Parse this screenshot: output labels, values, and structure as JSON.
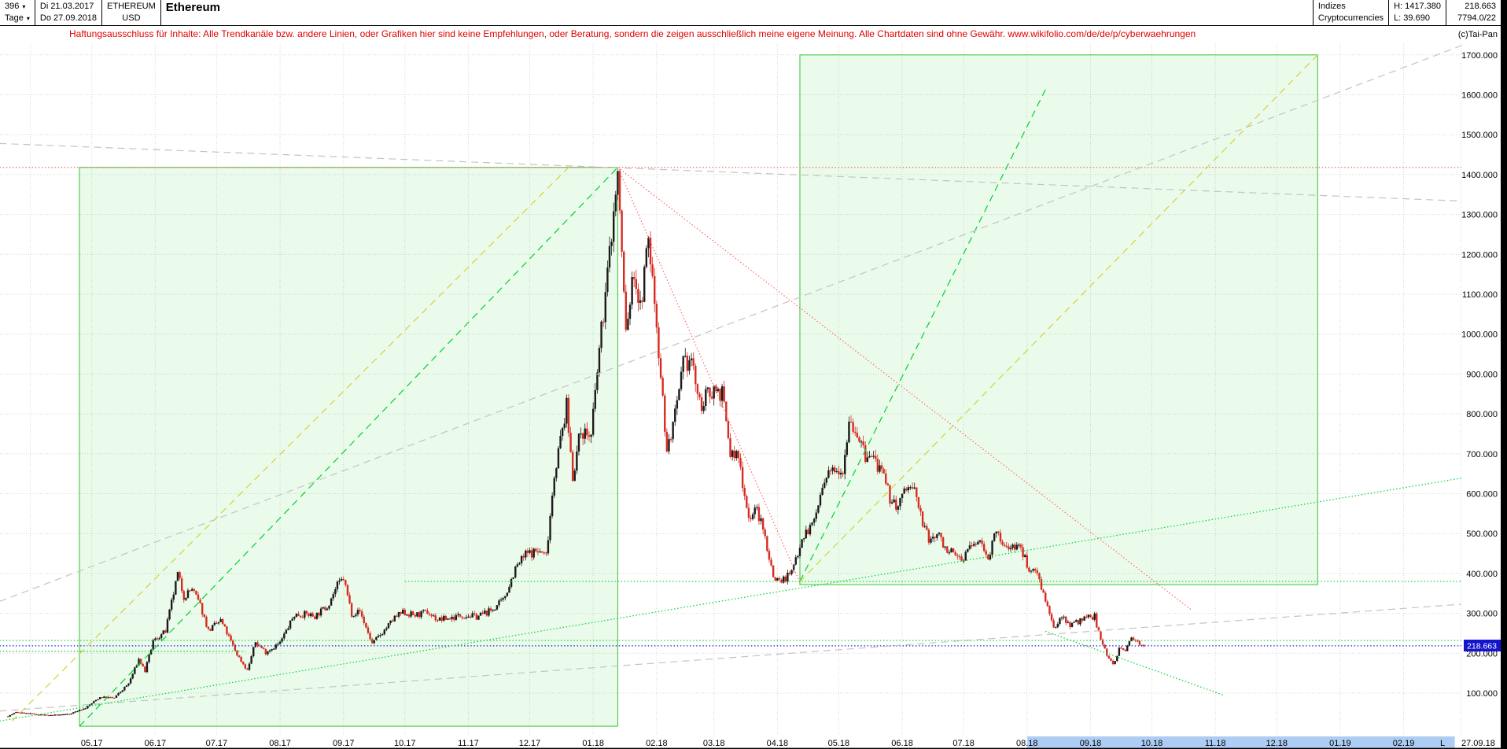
{
  "header": {
    "period_count": "396",
    "period_unit": "Tage",
    "date_from": "Di 21.03.2017",
    "date_to": "Do 27.09.2018",
    "symbol": "ETHEREUM",
    "currency": "USD",
    "title": "Ethereum",
    "group1": "Indizes",
    "group2": "Cryptocurrencies",
    "high_label": "H: 1417.380",
    "low_label": "L: 39.690",
    "last_value": "218.663",
    "secondary_value": "7794.0/22",
    "copyright": "(c)Tai-Pan"
  },
  "disclaimer": "Haftungsausschluss für Inhalte: Alle Trendkanäle bzw. andere Linien, oder Grafiken hier sind keine Empfehlungen, oder Beratung, sondern die zeigen ausschließlich meine eigene Meinung. Alle Chartdaten sind ohne Gewähr. www.wikifolio.com/de/de/p/cyberwaehrungen",
  "colors": {
    "candle_up": "#1a1a1a",
    "candle_down": "#d62b20",
    "box_fill": "rgba(60,220,60,0.10)",
    "box_edge": "#35c335",
    "green": "#00d22e",
    "olive": "#d2d23c",
    "red": "#ff6a6a",
    "gray": "#c3c3c3",
    "blue": "#2020dd",
    "grid": "#d6d6d6",
    "band": "#aecdf4",
    "badge_bg": "#1414cc",
    "badge_text": "#ffffff"
  },
  "chart_data": {
    "type": "candlestick-ohlc",
    "title": "Ethereum",
    "instrument": "ETHEREUM/USD",
    "period": "Tage",
    "grid": true,
    "x_start": "2017-03-21",
    "x_end_label": "27.09.18",
    "last_price": 218.663,
    "high": 1417.38,
    "low": 39.69,
    "ylim": [
      0,
      1755
    ],
    "y_tick_suffix": ".000",
    "y_ticks": [
      1700,
      1600,
      1500,
      1400,
      1300,
      1200,
      1100,
      1000,
      900,
      800,
      700,
      600,
      500,
      400,
      300,
      200,
      100
    ],
    "x_ticks": [
      {
        "label": "05.17",
        "date": "2017-05-01"
      },
      {
        "label": "06.17",
        "date": "2017-06-01"
      },
      {
        "label": "07.17",
        "date": "2017-07-01"
      },
      {
        "label": "08.17",
        "date": "2017-08-01"
      },
      {
        "label": "09.17",
        "date": "2017-09-01"
      },
      {
        "label": "10.17",
        "date": "2017-10-01"
      },
      {
        "label": "11.17",
        "date": "2017-11-01"
      },
      {
        "label": "12.17",
        "date": "2017-12-01"
      },
      {
        "label": "01.18",
        "date": "2018-01-01"
      },
      {
        "label": "02.18",
        "date": "2018-02-01"
      },
      {
        "label": "03.18",
        "date": "2018-03-01"
      },
      {
        "label": "04.18",
        "date": "2018-04-01"
      },
      {
        "label": "05.18",
        "date": "2018-05-01"
      },
      {
        "label": "06.18",
        "date": "2018-06-01"
      },
      {
        "label": "07.18",
        "date": "2018-07-01"
      },
      {
        "label": "08.18",
        "date": "2018-08-01"
      },
      {
        "label": "09.18",
        "date": "2018-09-01"
      },
      {
        "label": "10.18",
        "date": "2018-10-01"
      },
      {
        "label": "11.18",
        "date": "2018-11-01"
      },
      {
        "label": "12.18",
        "date": "2018-12-01"
      },
      {
        "label": "01.19",
        "date": "2019-01-01"
      },
      {
        "label": "02.19",
        "date": "2019-02-01"
      },
      {
        "label": "L",
        "date": "2019-02-20"
      }
    ],
    "grid_extra_dates": [
      "2017-04-01",
      "2019-03-01"
    ],
    "highlight_band": {
      "from": "2018-08-01",
      "to": "2019-02-26"
    },
    "boxes": [
      {
        "name": "trend-box-2017-rally",
        "from": "2017-04-25",
        "to": "2018-01-13",
        "p1": 17,
        "p2": 1418
      },
      {
        "name": "trend-box-2018",
        "from": "2018-04-12",
        "to": "2018-12-21",
        "p1": 372,
        "p2": 1700
      }
    ],
    "trendlines": [
      {
        "name": "peak-resistance-line",
        "color": "red",
        "style": "dot",
        "p": [
          [
            "2017-03-17",
            1418
          ],
          [
            "2019-03-20",
            1418
          ]
        ]
      },
      {
        "name": "last-price-line",
        "color": "blue",
        "style": "dot",
        "p": [
          [
            "2017-03-17",
            218.663
          ],
          [
            "2019-03-20",
            218.663
          ]
        ]
      },
      {
        "name": "uptrend-2017-green-dashed",
        "color": "green",
        "style": "dash",
        "p": [
          [
            "2017-04-25",
            17
          ],
          [
            "2018-01-13",
            1418
          ]
        ]
      },
      {
        "name": "uptrend-2017-yellow-dashed",
        "color": "olive",
        "style": "dash",
        "p": [
          [
            "2017-03-23",
            30
          ],
          [
            "2017-12-20",
            1418
          ]
        ]
      },
      {
        "name": "uptrend-2018-green-dashed-steep",
        "color": "green",
        "style": "dash",
        "p": [
          [
            "2018-04-12",
            380
          ],
          [
            "2018-08-10",
            1613
          ]
        ]
      },
      {
        "name": "uptrend-2018-yellow-dashed",
        "color": "olive",
        "style": "dash",
        "p": [
          [
            "2018-04-12",
            380
          ],
          [
            "2018-12-21",
            1700
          ]
        ]
      },
      {
        "name": "downtrend-from-peak-steep",
        "color": "red",
        "style": "dot",
        "p": [
          [
            "2018-01-13",
            1418
          ],
          [
            "2018-04-12",
            378
          ]
        ]
      },
      {
        "name": "downtrend-from-peak-shallow",
        "color": "red",
        "style": "dot",
        "p": [
          [
            "2018-01-13",
            1418
          ],
          [
            "2018-10-20",
            310
          ]
        ]
      },
      {
        "name": "gray-channel-upper",
        "color": "gray",
        "style": "dash",
        "p": [
          [
            "2017-03-17",
            330
          ],
          [
            "2019-03-20",
            1760
          ]
        ]
      },
      {
        "name": "gray-channel-lower",
        "color": "gray",
        "style": "dash",
        "p": [
          [
            "2017-03-17",
            55
          ],
          [
            "2019-03-20",
            330
          ]
        ]
      },
      {
        "name": "gray-top-resistance",
        "color": "gray",
        "style": "dash",
        "p": [
          [
            "2017-03-17",
            1478
          ],
          [
            "2019-03-20",
            1330
          ]
        ]
      },
      {
        "name": "long-term-support-green-dotted",
        "color": "green",
        "style": "dot",
        "p": [
          [
            "2017-03-17",
            30
          ],
          [
            "2019-03-20",
            655
          ]
        ]
      },
      {
        "name": "falling-support-green-dotted",
        "color": "green",
        "style": "dot",
        "p": [
          [
            "2018-08-10",
            255
          ],
          [
            "2018-11-05",
            95
          ]
        ]
      },
      {
        "name": "horizontal-support-380",
        "color": "green",
        "style": "dot",
        "p": [
          [
            "2017-10-01",
            380
          ],
          [
            "2019-03-20",
            380
          ]
        ]
      },
      {
        "name": "horizontal-support-232",
        "color": "green",
        "style": "dot",
        "p": [
          [
            "2017-03-17",
            232
          ],
          [
            "2019-03-20",
            232
          ]
        ]
      },
      {
        "name": "horizontal-support-205-short",
        "color": "green",
        "style": "dot",
        "p": [
          [
            "2017-03-17",
            205
          ],
          [
            "2017-07-15",
            205
          ]
        ]
      }
    ],
    "price_path_keyframes": [
      [
        "2017-03-21",
        42
      ],
      [
        "2017-03-25",
        52
      ],
      [
        "2017-04-02",
        48
      ],
      [
        "2017-04-10",
        44
      ],
      [
        "2017-04-20",
        48
      ],
      [
        "2017-04-28",
        63
      ],
      [
        "2017-05-05",
        90
      ],
      [
        "2017-05-12",
        88
      ],
      [
        "2017-05-19",
        124
      ],
      [
        "2017-05-24",
        185
      ],
      [
        "2017-05-27",
        155
      ],
      [
        "2017-05-31",
        230
      ],
      [
        "2017-06-06",
        255
      ],
      [
        "2017-06-12",
        398
      ],
      [
        "2017-06-15",
        342
      ],
      [
        "2017-06-19",
        362
      ],
      [
        "2017-06-23",
        320
      ],
      [
        "2017-06-27",
        257
      ],
      [
        "2017-07-03",
        282
      ],
      [
        "2017-07-07",
        240
      ],
      [
        "2017-07-11",
        197
      ],
      [
        "2017-07-16",
        157
      ],
      [
        "2017-07-20",
        228
      ],
      [
        "2017-07-25",
        203
      ],
      [
        "2017-08-01",
        226
      ],
      [
        "2017-08-08",
        296
      ],
      [
        "2017-08-14",
        298
      ],
      [
        "2017-08-18",
        293
      ],
      [
        "2017-08-24",
        318
      ],
      [
        "2017-08-29",
        370
      ],
      [
        "2017-09-01",
        388
      ],
      [
        "2017-09-05",
        300
      ],
      [
        "2017-09-09",
        305
      ],
      [
        "2017-09-15",
        224
      ],
      [
        "2017-09-21",
        258
      ],
      [
        "2017-09-26",
        289
      ],
      [
        "2017-09-30",
        302
      ],
      [
        "2017-10-06",
        295
      ],
      [
        "2017-10-12",
        303
      ],
      [
        "2017-10-17",
        284
      ],
      [
        "2017-10-23",
        288
      ],
      [
        "2017-10-29",
        296
      ],
      [
        "2017-11-05",
        292
      ],
      [
        "2017-11-12",
        307
      ],
      [
        "2017-11-18",
        332
      ],
      [
        "2017-11-24",
        412
      ],
      [
        "2017-11-29",
        448
      ],
      [
        "2017-12-05",
        457
      ],
      [
        "2017-12-09",
        445
      ],
      [
        "2017-12-13",
        650
      ],
      [
        "2017-12-19",
        818
      ],
      [
        "2017-12-22",
        645
      ],
      [
        "2017-12-26",
        760
      ],
      [
        "2017-12-31",
        742
      ],
      [
        "2018-01-04",
        960
      ],
      [
        "2018-01-08",
        1150
      ],
      [
        "2018-01-10",
        1255
      ],
      [
        "2018-01-13",
        1400
      ],
      [
        "2018-01-17",
        1005
      ],
      [
        "2018-01-21",
        1158
      ],
      [
        "2018-01-24",
        1060
      ],
      [
        "2018-01-28",
        1240
      ],
      [
        "2018-02-01",
        1028
      ],
      [
        "2018-02-06",
        705
      ],
      [
        "2018-02-11",
        815
      ],
      [
        "2018-02-14",
        920
      ],
      [
        "2018-02-18",
        938
      ],
      [
        "2018-02-22",
        820
      ],
      [
        "2018-02-25",
        840
      ],
      [
        "2018-03-01",
        865
      ],
      [
        "2018-03-05",
        852
      ],
      [
        "2018-03-09",
        700
      ],
      [
        "2018-03-13",
        692
      ],
      [
        "2018-03-18",
        540
      ],
      [
        "2018-03-22",
        560
      ],
      [
        "2018-03-26",
        490
      ],
      [
        "2018-03-30",
        392
      ],
      [
        "2018-04-03",
        382
      ],
      [
        "2018-04-08",
        402
      ],
      [
        "2018-04-13",
        492
      ],
      [
        "2018-04-18",
        520
      ],
      [
        "2018-04-24",
        625
      ],
      [
        "2018-04-29",
        670
      ],
      [
        "2018-05-03",
        662
      ],
      [
        "2018-05-06",
        790
      ],
      [
        "2018-05-10",
        752
      ],
      [
        "2018-05-14",
        690
      ],
      [
        "2018-05-18",
        692
      ],
      [
        "2018-05-22",
        648
      ],
      [
        "2018-05-26",
        590
      ],
      [
        "2018-05-30",
        565
      ],
      [
        "2018-06-03",
        618
      ],
      [
        "2018-06-07",
        608
      ],
      [
        "2018-06-11",
        528
      ],
      [
        "2018-06-14",
        482
      ],
      [
        "2018-06-18",
        500
      ],
      [
        "2018-06-22",
        468
      ],
      [
        "2018-06-26",
        445
      ],
      [
        "2018-06-30",
        437
      ],
      [
        "2018-07-04",
        465
      ],
      [
        "2018-07-09",
        482
      ],
      [
        "2018-07-13",
        444
      ],
      [
        "2018-07-17",
        502
      ],
      [
        "2018-07-21",
        463
      ],
      [
        "2018-07-25",
        472
      ],
      [
        "2018-07-29",
        462
      ],
      [
        "2018-08-02",
        412
      ],
      [
        "2018-08-06",
        406
      ],
      [
        "2018-08-10",
        332
      ],
      [
        "2018-08-14",
        258
      ],
      [
        "2018-08-18",
        295
      ],
      [
        "2018-08-22",
        272
      ],
      [
        "2018-08-26",
        280
      ],
      [
        "2018-08-30",
        288
      ],
      [
        "2018-09-03",
        292
      ],
      [
        "2018-09-06",
        232
      ],
      [
        "2018-09-09",
        198
      ],
      [
        "2018-09-12",
        172
      ],
      [
        "2018-09-15",
        210
      ],
      [
        "2018-09-18",
        205
      ],
      [
        "2018-09-21",
        244
      ],
      [
        "2018-09-24",
        228
      ],
      [
        "2018-09-27",
        218.663
      ]
    ]
  }
}
